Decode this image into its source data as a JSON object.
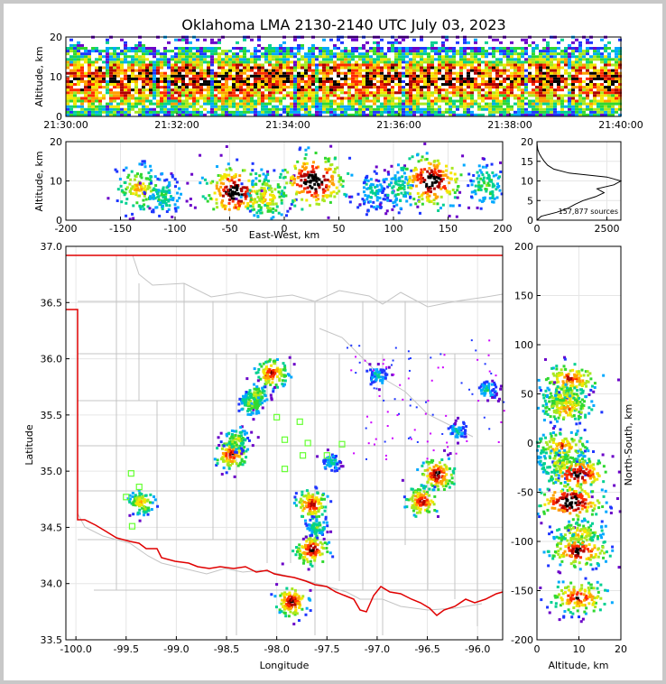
{
  "chart_data": [
    {
      "type": "heatmap",
      "panel": "time-altitude",
      "title": "Oklahoma LMA 2130-2140 UTC July 03, 2023",
      "xlabel": "",
      "ylabel": "Altitude, km",
      "x_ticks": [
        "21:30:00",
        "21:32:00",
        "21:34:00",
        "21:36:00",
        "21:38:00",
        "21:40:00"
      ],
      "y_ticks": [
        0,
        10,
        20
      ],
      "ylim": [
        0,
        20
      ],
      "density_band_km": [
        4,
        13
      ],
      "peak_altitude_km": 9
    },
    {
      "type": "heatmap",
      "panel": "east-west-altitude",
      "xlabel": "East-West, km",
      "ylabel": "Altitude, km",
      "xlim": [
        -200,
        200
      ],
      "ylim": [
        0,
        20
      ],
      "x_ticks": [
        -200,
        -150,
        -100,
        -50,
        0,
        50,
        100,
        150,
        200
      ],
      "y_ticks": [
        0,
        10,
        20
      ],
      "cells": [
        {
          "x": -133,
          "z": 8,
          "intensity": 0.6
        },
        {
          "x": -110,
          "z": 6,
          "intensity": 0.35
        },
        {
          "x": -45,
          "z": 7,
          "intensity": 0.95
        },
        {
          "x": -15,
          "z": 6,
          "intensity": 0.6
        },
        {
          "x": 27,
          "z": 10,
          "intensity": 1.0
        },
        {
          "x": 80,
          "z": 7,
          "intensity": 0.3
        },
        {
          "x": 105,
          "z": 8,
          "intensity": 0.35
        },
        {
          "x": 135,
          "z": 10,
          "intensity": 0.95
        },
        {
          "x": 185,
          "z": 9,
          "intensity": 0.4
        }
      ]
    },
    {
      "type": "line",
      "panel": "altitude-histogram",
      "xlim": [
        0,
        3000
      ],
      "ylim": [
        0,
        20
      ],
      "x_ticks": [
        0,
        2500
      ],
      "y_ticks": [
        0,
        5,
        10,
        15,
        20
      ],
      "annotation": "157,877 sources",
      "series": [
        {
          "altitude": [
            0,
            1,
            2,
            3,
            4,
            5,
            6,
            7,
            8,
            9,
            10,
            11,
            12,
            13,
            14,
            15,
            16,
            17,
            18,
            19,
            20
          ],
          "count": [
            0,
            150,
            700,
            1100,
            1350,
            1650,
            2100,
            2400,
            2150,
            2750,
            3000,
            2500,
            1150,
            600,
            380,
            260,
            160,
            80,
            30,
            10,
            0
          ]
        }
      ]
    },
    {
      "type": "heatmap",
      "panel": "plan-view",
      "xlabel": "Longitude",
      "ylabel": "Latitude",
      "xlim": [
        -100.1,
        -95.75
      ],
      "ylim": [
        33.5,
        37.0
      ],
      "x_ticks": [
        -100.0,
        -99.5,
        -99.0,
        -98.5,
        -98.0,
        -97.5,
        -97.0,
        -96.5,
        -96.0
      ],
      "y_ticks": [
        33.5,
        34.0,
        34.5,
        35.0,
        35.5,
        36.0,
        36.5,
        37.0
      ],
      "cells": [
        {
          "lon": -99.35,
          "lat": 34.72,
          "intensity": 0.6
        },
        {
          "lon": -98.45,
          "lat": 35.15,
          "intensity": 0.8
        },
        {
          "lon": -98.4,
          "lat": 35.28,
          "intensity": 0.5
        },
        {
          "lon": -98.05,
          "lat": 35.87,
          "intensity": 0.8
        },
        {
          "lon": -98.2,
          "lat": 35.68,
          "intensity": 0.5
        },
        {
          "lon": -98.25,
          "lat": 35.6,
          "intensity": 0.5
        },
        {
          "lon": -97.65,
          "lat": 34.7,
          "intensity": 0.8
        },
        {
          "lon": -97.65,
          "lat": 34.3,
          "intensity": 0.85
        },
        {
          "lon": -97.6,
          "lat": 34.5,
          "intensity": 0.4
        },
        {
          "lon": -97.85,
          "lat": 33.84,
          "intensity": 0.85
        },
        {
          "lon": -97.0,
          "lat": 35.85,
          "intensity": 0.3
        },
        {
          "lon": -96.4,
          "lat": 34.97,
          "intensity": 0.9
        },
        {
          "lon": -96.55,
          "lat": 34.73,
          "intensity": 0.8
        },
        {
          "lon": -95.9,
          "lat": 35.72,
          "intensity": 0.3
        },
        {
          "lon": -96.2,
          "lat": 35.35,
          "intensity": 0.3
        },
        {
          "lon": -97.45,
          "lat": 35.08,
          "intensity": 0.3
        }
      ],
      "stations": [
        {
          "lon": -99.45,
          "lat": 34.98
        },
        {
          "lon": -99.37,
          "lat": 34.86
        },
        {
          "lon": -99.5,
          "lat": 34.77
        },
        {
          "lon": -99.44,
          "lat": 34.51
        },
        {
          "lon": -98.0,
          "lat": 35.48
        },
        {
          "lon": -97.77,
          "lat": 35.44
        },
        {
          "lon": -97.92,
          "lat": 35.28
        },
        {
          "lon": -97.69,
          "lat": 35.25
        },
        {
          "lon": -97.35,
          "lat": 35.24
        },
        {
          "lon": -97.92,
          "lat": 35.02
        },
        {
          "lon": -97.74,
          "lat": 35.14
        },
        {
          "lon": -97.5,
          "lat": 35.14
        }
      ]
    },
    {
      "type": "heatmap",
      "panel": "altitude-north-south",
      "xlabel": "Altitude, km",
      "ylabel": "North-South, km",
      "xlim": [
        0,
        20
      ],
      "ylim": [
        -200,
        200
      ],
      "x_ticks": [
        0,
        10,
        20
      ],
      "y_ticks": [
        -200,
        -150,
        -100,
        -50,
        0,
        50,
        100,
        150,
        200
      ],
      "cells": [
        {
          "alt": 8,
          "y": 65,
          "intensity": 0.75
        },
        {
          "alt": 7,
          "y": 45,
          "intensity": 0.6
        },
        {
          "alt": 7,
          "y": 35,
          "intensity": 0.65
        },
        {
          "alt": 6,
          "y": -3,
          "intensity": 0.7
        },
        {
          "alt": 6,
          "y": -20,
          "intensity": 0.55
        },
        {
          "alt": 10,
          "y": -32,
          "intensity": 0.9
        },
        {
          "alt": 8,
          "y": -60,
          "intensity": 1.0
        },
        {
          "alt": 10,
          "y": -92,
          "intensity": 0.6
        },
        {
          "alt": 10,
          "y": -110,
          "intensity": 0.85
        },
        {
          "alt": 10,
          "y": -157,
          "intensity": 0.8
        }
      ]
    }
  ]
}
